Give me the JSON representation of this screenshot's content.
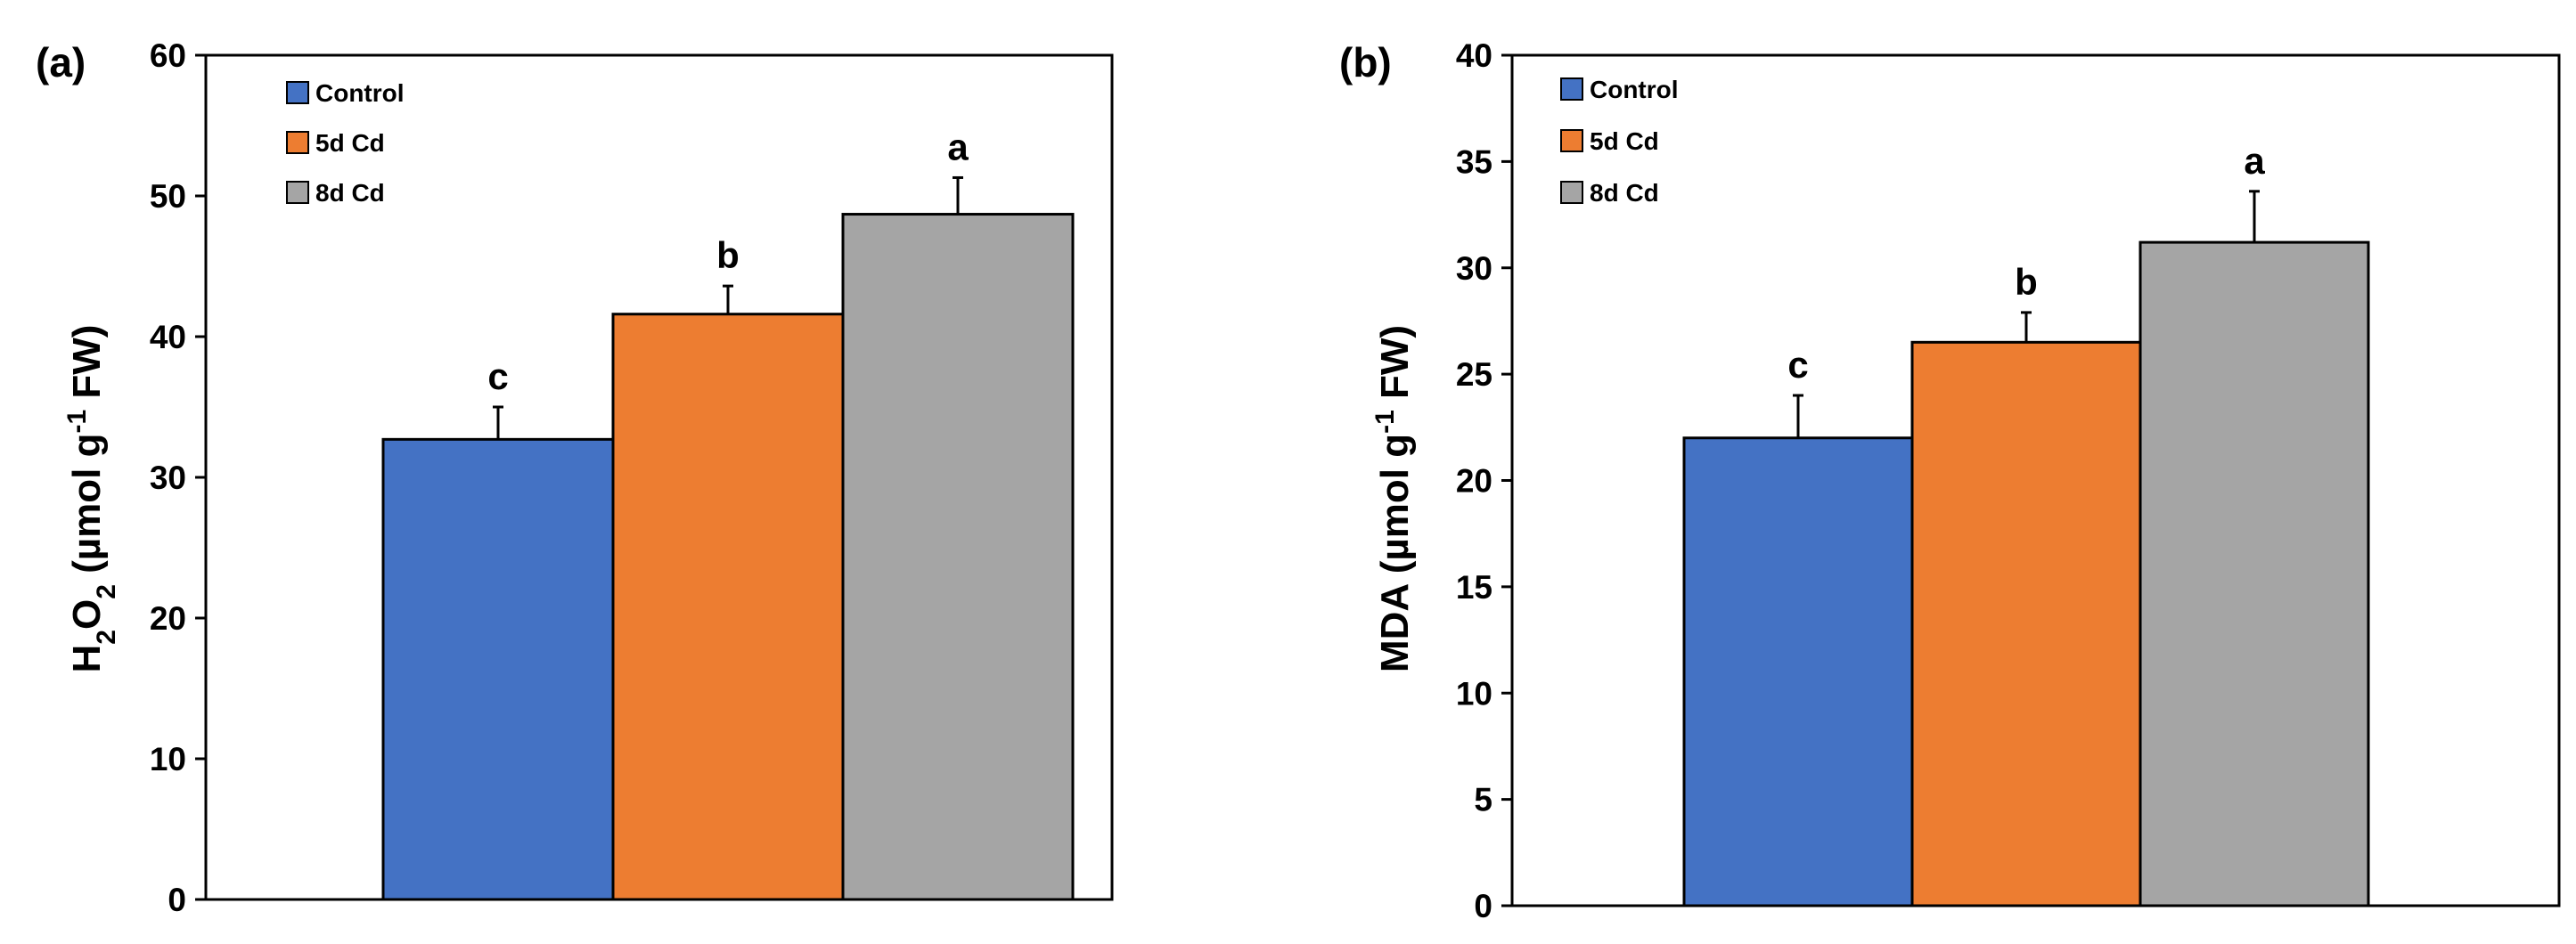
{
  "chart_data": [
    {
      "type": "bar",
      "panel_label": "(a)",
      "ylabel": {
        "prefix": "H",
        "sub1": "2",
        "mid": "O",
        "sub2": "2",
        "unit": " (µmol g",
        "sup": "-1",
        "tail": " FW)"
      },
      "ylim": [
        0,
        60
      ],
      "yticks": [
        0,
        10,
        20,
        30,
        40,
        50,
        60
      ],
      "grid": false,
      "legend_position": "top-left",
      "series": [
        {
          "name": "Control",
          "value": 32.7,
          "error": 2.3,
          "letter": "c",
          "color": "#4472C4"
        },
        {
          "name": "5d Cd",
          "value": 41.6,
          "error": 2.0,
          "letter": "b",
          "color": "#ED7D31"
        },
        {
          "name": "8d Cd",
          "value": 48.7,
          "error": 2.6,
          "letter": "a",
          "color": "#A5A5A5"
        }
      ]
    },
    {
      "type": "bar",
      "panel_label": "(b)",
      "ylabel": {
        "prefix": "MDA",
        "unit": " (µmol g",
        "sup": "-1",
        "tail": " FW)"
      },
      "ylim": [
        0,
        40
      ],
      "yticks": [
        0,
        5,
        10,
        15,
        20,
        25,
        30,
        35,
        40
      ],
      "grid": false,
      "legend_position": "top-left",
      "series": [
        {
          "name": "Control",
          "value": 22.0,
          "error": 2.0,
          "letter": "c",
          "color": "#4472C4"
        },
        {
          "name": "5d Cd",
          "value": 26.5,
          "error": 1.4,
          "letter": "b",
          "color": "#ED7D31"
        },
        {
          "name": "8d Cd",
          "value": 31.2,
          "error": 2.4,
          "letter": "a",
          "color": "#A5A5A5"
        }
      ]
    }
  ]
}
